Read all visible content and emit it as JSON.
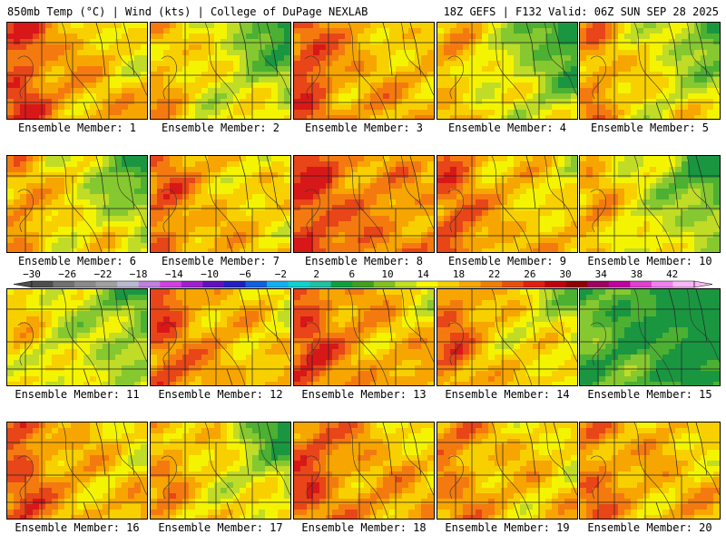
{
  "header": {
    "left": "850mb Temp (°C) | Wind (kts) | College of DuPage NEXLAB",
    "right": "18Z GEFS | F132 Valid: 06Z SUN SEP 28 2025"
  },
  "members": [
    {
      "label": "Ensemble Member: 1",
      "warmth": 0.62,
      "west_hot": 0.9,
      "ne_cool": 0.35
    },
    {
      "label": "Ensemble Member: 2",
      "warmth": 0.45,
      "west_hot": 0.6,
      "ne_cool": 0.8
    },
    {
      "label": "Ensemble Member: 3",
      "warmth": 0.62,
      "west_hot": 0.8,
      "ne_cool": 0.2
    },
    {
      "label": "Ensemble Member: 4",
      "warmth": 0.42,
      "west_hot": 0.7,
      "ne_cool": 0.9
    },
    {
      "label": "Ensemble Member: 5",
      "warmth": 0.48,
      "west_hot": 0.8,
      "ne_cool": 0.7
    },
    {
      "label": "Ensemble Member: 6",
      "warmth": 0.48,
      "west_hot": 0.7,
      "ne_cool": 0.85
    },
    {
      "label": "Ensemble Member: 7",
      "warmth": 0.58,
      "west_hot": 0.7,
      "ne_cool": 0.25
    },
    {
      "label": "Ensemble Member: 8",
      "warmth": 0.72,
      "west_hot": 0.6,
      "ne_cool": 0.25
    },
    {
      "label": "Ensemble Member: 9",
      "warmth": 0.6,
      "west_hot": 0.75,
      "ne_cool": 0.35
    },
    {
      "label": "Ensemble Member: 10",
      "warmth": 0.42,
      "west_hot": 0.8,
      "ne_cool": 0.85
    },
    {
      "label": "Ensemble Member: 11",
      "warmth": 0.4,
      "west_hot": 0.5,
      "ne_cool": 0.5
    },
    {
      "label": "Ensemble Member: 12",
      "warmth": 0.62,
      "west_hot": 0.7,
      "ne_cool": 0.35
    },
    {
      "label": "Ensemble Member: 13",
      "warmth": 0.65,
      "west_hot": 0.7,
      "ne_cool": 0.35
    },
    {
      "label": "Ensemble Member: 14",
      "warmth": 0.55,
      "west_hot": 0.8,
      "ne_cool": 0.5
    },
    {
      "label": "Ensemble Member: 15",
      "warmth": 0.12,
      "west_hot": 0.2,
      "ne_cool": 1.0
    },
    {
      "label": "Ensemble Member: 16",
      "warmth": 0.6,
      "west_hot": 0.8,
      "ne_cool": 0.25
    },
    {
      "label": "Ensemble Member: 17",
      "warmth": 0.5,
      "west_hot": 0.6,
      "ne_cool": 0.85
    },
    {
      "label": "Ensemble Member: 18",
      "warmth": 0.65,
      "west_hot": 0.6,
      "ne_cool": 0.3
    },
    {
      "label": "Ensemble Member: 19",
      "warmth": 0.58,
      "west_hot": 0.5,
      "ne_cool": 0.2
    },
    {
      "label": "Ensemble Member: 20",
      "warmth": 0.6,
      "west_hot": 0.5,
      "ne_cool": 0.15
    }
  ],
  "colorbar": {
    "tick_labels": [
      "-30",
      "-26",
      "-22",
      "-18",
      "-14",
      "-10",
      "-6",
      "-2",
      "2",
      "6",
      "10",
      "14",
      "18",
      "22",
      "26",
      "30",
      "34",
      "38",
      "42"
    ],
    "colors": [
      "#4d4d4d",
      "#707070",
      "#8a8a8a",
      "#a0a0a0",
      "#b8b8d0",
      "#c080e0",
      "#d040e0",
      "#a020d0",
      "#6010c0",
      "#2020c0",
      "#1060e0",
      "#10b0f0",
      "#10d0d0",
      "#20c0a0",
      "#10a040",
      "#40a020",
      "#80c020",
      "#c0e020",
      "#f8f800",
      "#f8d000",
      "#f8a800",
      "#f08000",
      "#e85010",
      "#e02010",
      "#c00010",
      "#900000",
      "#a00060",
      "#c000a0",
      "#e040d0",
      "#f080f0",
      "#f8b8f8"
    ]
  }
}
